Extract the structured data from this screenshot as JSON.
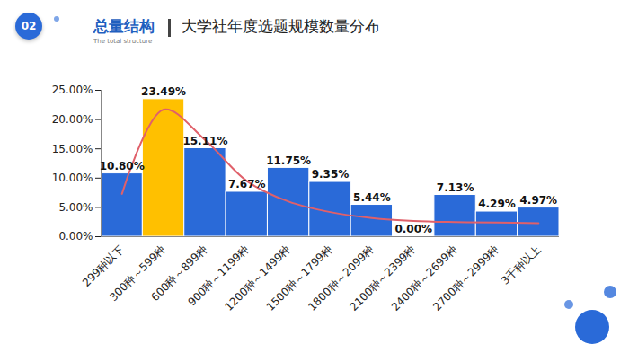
{
  "slide": {
    "badge": "02",
    "section": "总量结构",
    "section_en": "The total structure"
  },
  "chart_data": {
    "type": "bar",
    "title": "大学社年度选题规模数量分布",
    "categories": [
      "299种以下",
      "300种～599种",
      "600种～899种",
      "900种～1199种",
      "1200种～1499种",
      "1500种～1799种",
      "1800种～2099种",
      "2100种～2399种",
      "2400种～2699种",
      "2700种～2999种",
      "3千种以上"
    ],
    "series": [
      {
        "type": "bar",
        "values": [
          10.8,
          23.49,
          15.11,
          7.67,
          11.75,
          9.35,
          5.44,
          0.0,
          7.13,
          4.29,
          4.97
        ],
        "value_labels": [
          "10.80%",
          "23.49%",
          "15.11%",
          "7.67%",
          "11.75%",
          "9.35%",
          "5.44%",
          "0.00%",
          "7.13%",
          "4.29%",
          "4.97%"
        ],
        "colors": [
          "#2a6ad8",
          "#ffc000",
          "#2a6ad8",
          "#2a6ad8",
          "#2a6ad8",
          "#2a6ad8",
          "#2a6ad8",
          "#2a6ad8",
          "#2a6ad8",
          "#2a6ad8",
          "#2a6ad8"
        ]
      },
      {
        "type": "line",
        "color": "#e0606a",
        "line_style": "smooth",
        "values": [
          7.3,
          21.7,
          16.5,
          9.5,
          6.0,
          4.2,
          3.2,
          2.7,
          2.5,
          2.4,
          2.3
        ]
      }
    ],
    "ylim": [
      0,
      25
    ],
    "yticks": [
      {
        "value": 0,
        "label": "0.00%"
      },
      {
        "value": 5,
        "label": "5.00%"
      },
      {
        "value": 10,
        "label": "10.00%"
      },
      {
        "value": 15,
        "label": "15.00%"
      },
      {
        "value": 20,
        "label": "20.00%"
      },
      {
        "value": 25,
        "label": "25.00%"
      }
    ],
    "grid": false,
    "data_labels": true
  }
}
